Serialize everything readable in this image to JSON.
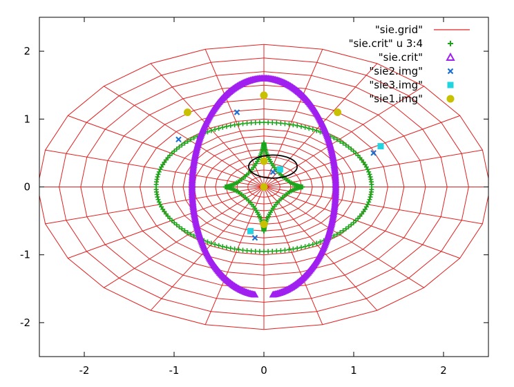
{
  "chart_data": {
    "type": "scatter",
    "xlim": [
      -2.5,
      2.5
    ],
    "ylim": [
      -2.5,
      2.5
    ],
    "xticks": [
      -2,
      -1,
      0,
      1,
      2
    ],
    "yticks": [
      -2,
      -1,
      0,
      1,
      2
    ],
    "xtick_labels": [
      "-2",
      "-1",
      "0",
      "1",
      "2"
    ],
    "ytick_labels": [
      "-2",
      "-1",
      "0",
      "1",
      "2"
    ],
    "grid": false,
    "legend_position": "top-right",
    "series": [
      {
        "name": "\"sie.grid\"",
        "style": "polar-mesh",
        "color": "#e02020",
        "radii": [
          0.15,
          0.25,
          0.35,
          0.45,
          0.55,
          0.65,
          0.75,
          0.85,
          1.0,
          1.15,
          1.3,
          1.5,
          1.7,
          1.9,
          2.1
        ],
        "spokes": 24,
        "x_scale": 1.2,
        "y_scale": 1.0
      },
      {
        "name": "\"sie.crit\" u  3:4",
        "style": "plus",
        "color": "#1aa51a",
        "caustic_astroid": {
          "a": 0.43,
          "b": 0.65
        },
        "caustic_oval": {
          "rx": 1.2,
          "ry": 0.95
        },
        "points": 160
      },
      {
        "name": "\"sie.crit\"",
        "style": "triangle",
        "color": "#a020f0",
        "critical_curve": {
          "rx": 0.8,
          "ry": 1.6,
          "gap_below": -1.58
        }
      },
      {
        "name": "\"sie2.img\"",
        "style": "cross",
        "color": "#1a6fd1",
        "points": [
          [
            -0.95,
            0.7
          ],
          [
            -0.3,
            1.1
          ],
          [
            1.22,
            0.5
          ],
          [
            0.1,
            0.22
          ],
          [
            -0.1,
            -0.75
          ]
        ]
      },
      {
        "name": "\"sie3.img\"",
        "style": "square",
        "color": "#20d4e0",
        "points": [
          [
            1.3,
            0.6
          ],
          [
            0.18,
            0.26
          ],
          [
            -0.15,
            -0.65
          ]
        ]
      },
      {
        "name": "\"sie1.img\"",
        "style": "circle",
        "color": "#c8c000",
        "points": [
          [
            -0.85,
            1.1
          ],
          [
            0.0,
            1.35
          ],
          [
            0.82,
            1.1
          ],
          [
            0.0,
            0.38
          ],
          [
            0.0,
            0.0
          ],
          [
            0.0,
            -0.55
          ]
        ]
      }
    ],
    "source_ellipse": {
      "cx": 0.1,
      "cy": 0.3,
      "rx": 0.27,
      "ry": 0.17,
      "color": "#000000"
    }
  }
}
